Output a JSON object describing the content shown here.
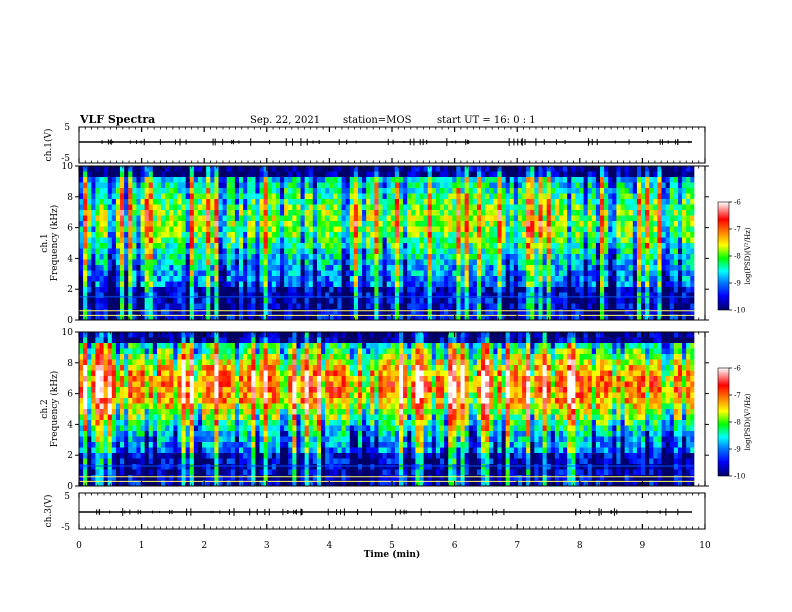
{
  "header": {
    "title": "VLF Spectra",
    "date": "Sep. 22, 2021",
    "station": "station=MOS",
    "start": "start  UT =   16: 0  : 1"
  },
  "colors": {
    "spectrum_scale": [
      "#000066",
      "#0000ff",
      "#0080ff",
      "#00ffff",
      "#00ff00",
      "#ffff00",
      "#ff8000",
      "#ff0000",
      "#ffffff"
    ],
    "axis": "#000000"
  },
  "chart_data": [
    {
      "type": "line",
      "panel": "ch1-waveform",
      "ylabel": "ch.1(V)",
      "ylim": [
        -5,
        5
      ],
      "yticks": [
        "5",
        "-5"
      ],
      "baseline": -1
    },
    {
      "type": "heatmap",
      "panel": "ch1-spectrogram",
      "ylabel": "ch.1",
      "ylabel2": "Frequency (kHz)",
      "ylim": [
        0,
        10
      ],
      "yticks": [
        "0",
        "2",
        "4",
        "6",
        "8",
        "10"
      ],
      "colorbar": {
        "label": "log(PSD)(V²/Hz)",
        "range": [
          -10,
          -6
        ],
        "ticks": [
          "-6",
          "-7",
          "-8",
          "-9",
          "-10"
        ]
      },
      "band_peak_khz": 6.5,
      "lines_khz": [
        0.3,
        0.6,
        1.5
      ]
    },
    {
      "type": "heatmap",
      "panel": "ch2-spectrogram",
      "ylabel": "ch.2",
      "ylabel2": "Frequency (kHz)",
      "ylim": [
        0,
        10
      ],
      "yticks": [
        "0",
        "2",
        "4",
        "6",
        "8",
        "10"
      ],
      "colorbar": {
        "label": "log(PSD)(V²/Hz)",
        "range": [
          -10,
          -6
        ],
        "ticks": [
          "-6",
          "-7",
          "-8",
          "-9",
          "-10"
        ]
      },
      "band_peak_khz": 6.5,
      "lines_khz": [
        0.3,
        0.6,
        1.3
      ]
    },
    {
      "type": "line",
      "panel": "ch3-waveform",
      "ylabel": "ch.3(V)",
      "ylim": [
        -5,
        5
      ],
      "yticks": [
        "5",
        "-5"
      ],
      "baseline": -1
    }
  ],
  "xaxis": {
    "label": "Time  (min)",
    "ticks": [
      "0",
      "1",
      "2",
      "3",
      "4",
      "5",
      "6",
      "7",
      "8",
      "9",
      "10"
    ],
    "xlim": [
      0,
      10
    ],
    "data_end": 9.83
  }
}
